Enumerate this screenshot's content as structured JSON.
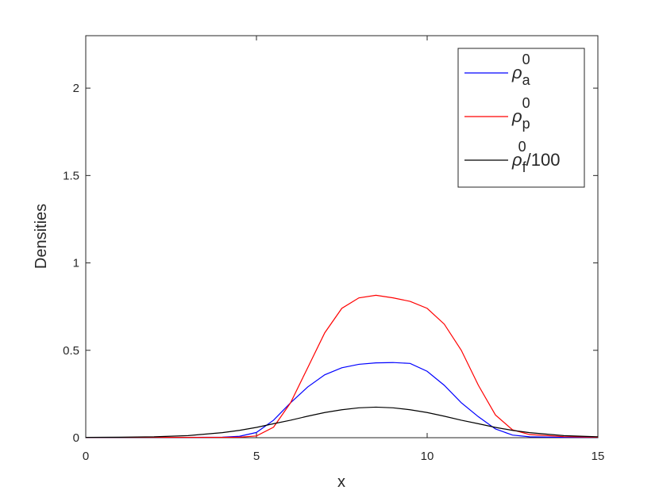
{
  "chart_data": {
    "type": "line",
    "xlabel": "x",
    "ylabel": "Densities",
    "x": [
      0,
      1,
      2,
      3,
      4,
      4.5,
      5,
      5.5,
      6,
      6.5,
      7,
      7.5,
      8,
      8.5,
      9,
      9.5,
      10,
      10.5,
      11,
      11.5,
      12,
      12.5,
      13,
      14,
      15
    ],
    "series": [
      {
        "name": "ρa0",
        "color": "#0000ff",
        "values": [
          0.002,
          0.002,
          0.002,
          0.002,
          0.003,
          0.008,
          0.03,
          0.1,
          0.2,
          0.29,
          0.36,
          0.4,
          0.42,
          0.428,
          0.43,
          0.425,
          0.38,
          0.3,
          0.2,
          0.12,
          0.05,
          0.015,
          0.005,
          0.002,
          0.002
        ]
      },
      {
        "name": "ρp0",
        "color": "#ff0000",
        "values": [
          0.002,
          0.002,
          0.002,
          0.002,
          0.002,
          0.003,
          0.01,
          0.06,
          0.2,
          0.4,
          0.6,
          0.74,
          0.8,
          0.815,
          0.8,
          0.78,
          0.74,
          0.65,
          0.5,
          0.3,
          0.13,
          0.045,
          0.018,
          0.006,
          0.003
        ]
      },
      {
        "name": "ρf0/100",
        "color": "#000000",
        "values": [
          0.002,
          0.003,
          0.005,
          0.012,
          0.029,
          0.042,
          0.059,
          0.08,
          0.1,
          0.123,
          0.144,
          0.16,
          0.171,
          0.175,
          0.171,
          0.16,
          0.144,
          0.123,
          0.1,
          0.08,
          0.059,
          0.042,
          0.029,
          0.012,
          0.005
        ]
      }
    ],
    "xlim": [
      0,
      15
    ],
    "xticks": [
      0,
      5,
      10,
      15
    ],
    "ylim": [
      0,
      2.3
    ],
    "yticks": [
      0,
      0.5,
      1,
      1.5,
      2
    ],
    "legend": "upper right",
    "grid": false
  }
}
